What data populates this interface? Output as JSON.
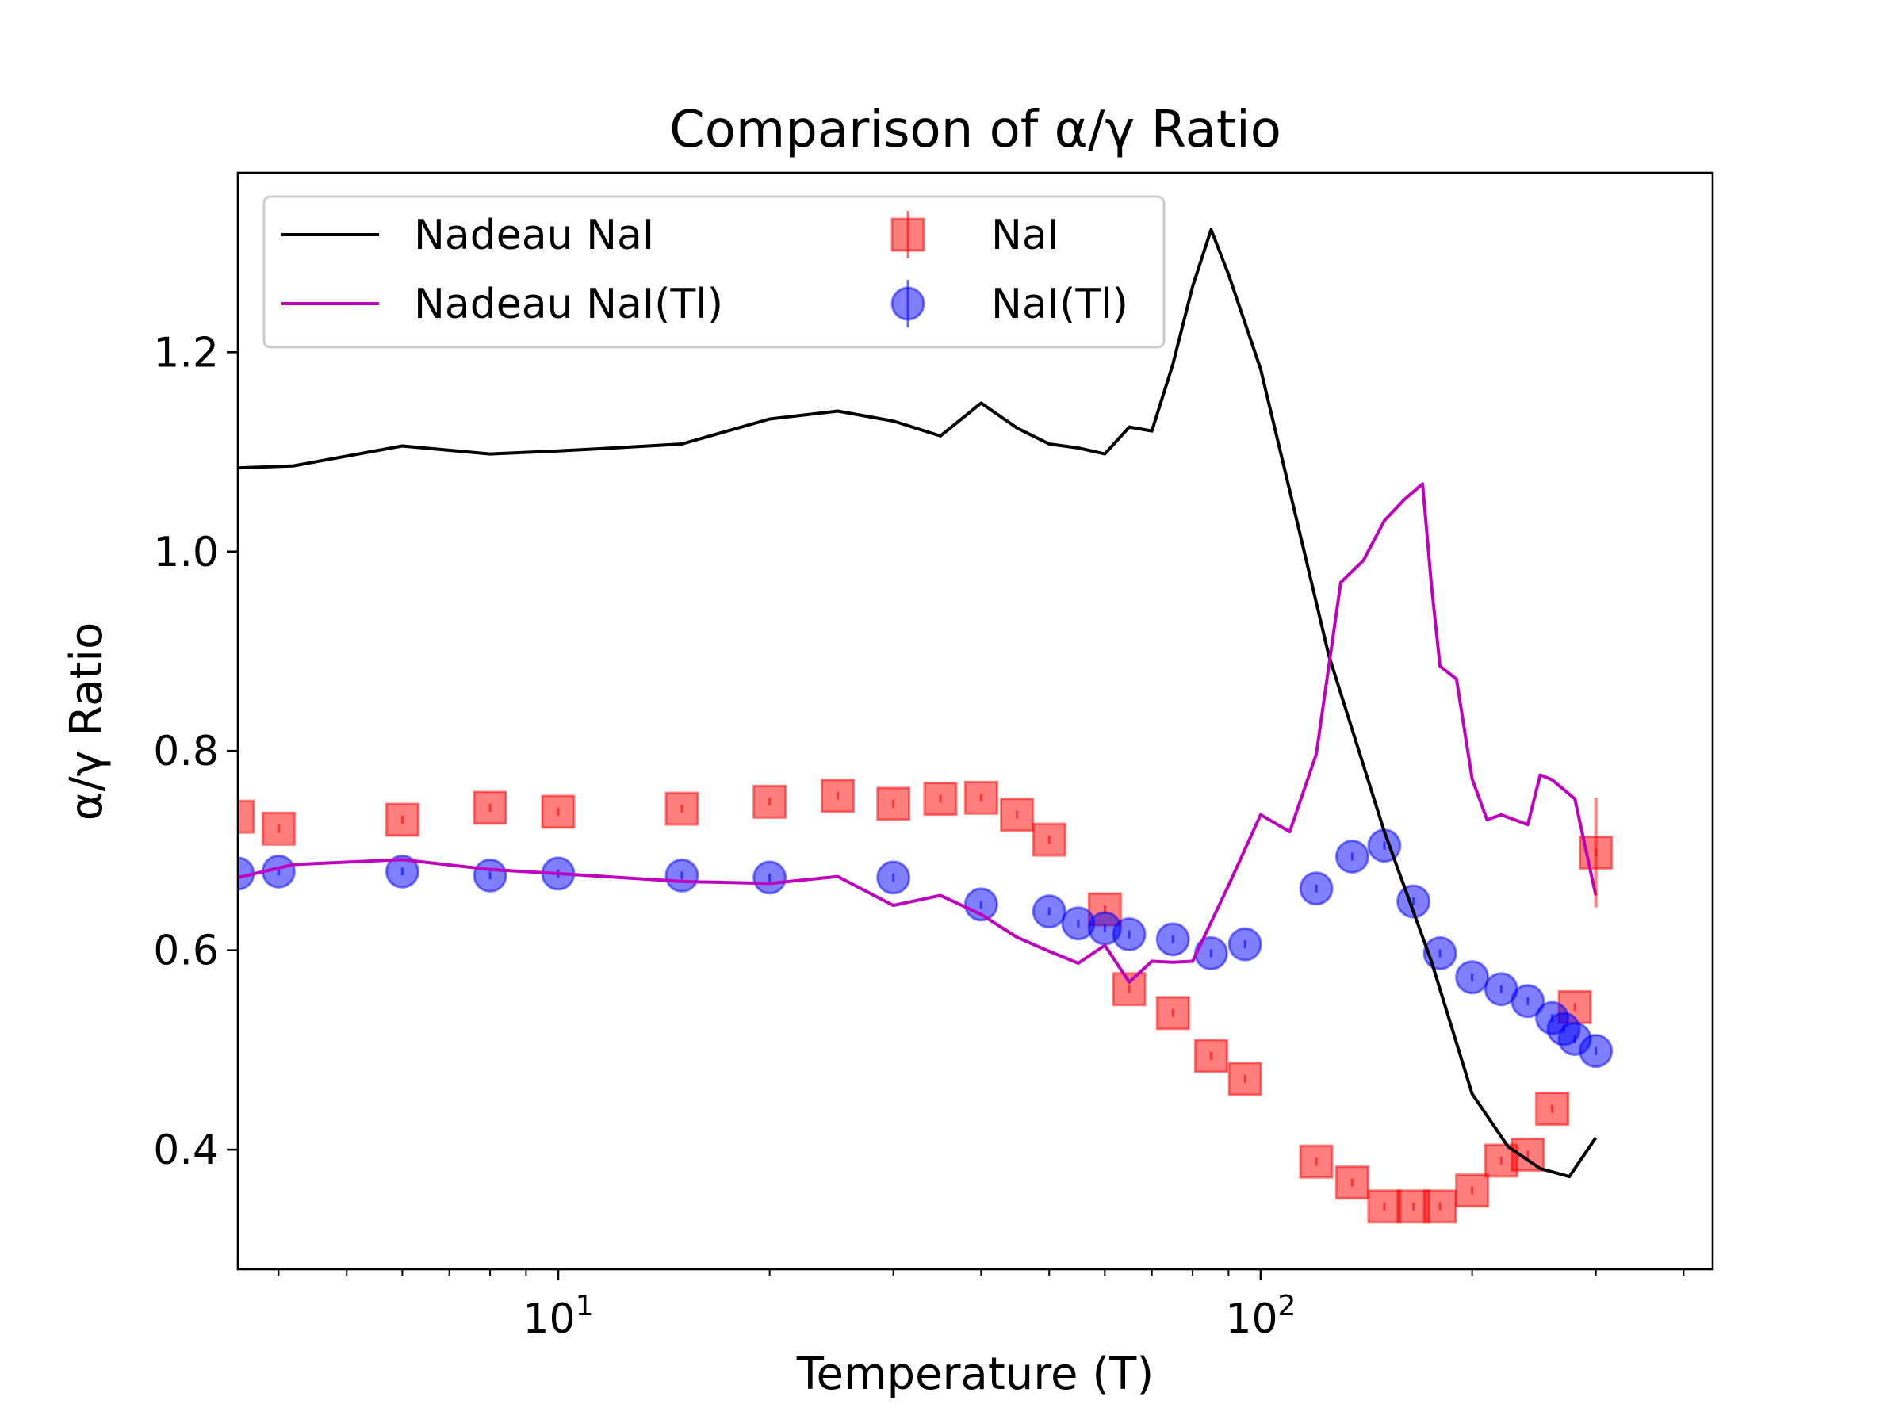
{
  "chart_data": {
    "type": "scatter",
    "title": "Comparison of α/γ Ratio",
    "xlabel": "Temperature (T)",
    "ylabel": "α/γ Ratio",
    "xscale": "log",
    "xlim": [
      3.5,
      440
    ],
    "ylim": [
      0.28,
      1.38
    ],
    "grid": false,
    "legend_position": "upper-left",
    "x_ticks": [
      {
        "value": 10,
        "base": "10",
        "exp": "1"
      },
      {
        "value": 100,
        "base": "10",
        "exp": "2"
      }
    ],
    "y_ticks": [
      {
        "value": 0.4,
        "label": "0.4"
      },
      {
        "value": 0.6,
        "label": "0.6"
      },
      {
        "value": 0.8,
        "label": "0.8"
      },
      {
        "value": 1.0,
        "label": "1.0"
      },
      {
        "value": 1.2,
        "label": "1.2"
      }
    ],
    "series": [
      {
        "name": "Nadeau NaI",
        "kind": "line",
        "color": "#000000",
        "x": [
          3.5,
          4.2,
          6,
          8,
          10,
          12,
          15,
          20,
          25,
          30,
          35,
          40,
          45,
          50,
          55,
          60,
          65,
          70,
          75,
          80,
          85,
          90,
          100,
          110,
          125,
          150,
          175,
          200,
          225,
          250,
          275,
          300
        ],
        "y": [
          1.084,
          1.086,
          1.106,
          1.098,
          1.101,
          1.104,
          1.108,
          1.133,
          1.141,
          1.131,
          1.116,
          1.149,
          1.124,
          1.108,
          1.104,
          1.098,
          1.125,
          1.121,
          1.188,
          1.266,
          1.323,
          1.278,
          1.183,
          1.061,
          0.896,
          0.719,
          0.589,
          0.456,
          0.403,
          0.381,
          0.373,
          0.412
        ]
      },
      {
        "name": "Nadeau NaI(Tl)",
        "kind": "line",
        "color": "#bf00bf",
        "x": [
          3.5,
          4.2,
          6,
          8,
          10,
          15,
          20,
          25,
          30,
          35,
          40,
          45,
          50,
          55,
          60,
          65,
          70,
          75,
          80,
          90,
          100,
          110,
          120,
          130,
          140,
          150,
          160,
          170,
          175,
          180,
          190,
          200,
          210,
          220,
          240,
          250,
          260,
          280,
          300
        ],
        "y": [
          0.673,
          0.686,
          0.691,
          0.681,
          0.677,
          0.669,
          0.667,
          0.674,
          0.645,
          0.655,
          0.636,
          0.613,
          0.599,
          0.587,
          0.605,
          0.568,
          0.589,
          0.588,
          0.589,
          0.665,
          0.736,
          0.719,
          0.797,
          0.969,
          0.991,
          1.031,
          1.052,
          1.068,
          0.967,
          0.885,
          0.872,
          0.772,
          0.731,
          0.736,
          0.726,
          0.776,
          0.771,
          0.752,
          0.655
        ]
      },
      {
        "name": "NaI",
        "kind": "markers",
        "marker": "square",
        "color": "#ff0000",
        "x": [
          3.5,
          4.0,
          6,
          8,
          10,
          15,
          20,
          25,
          30,
          35,
          40,
          45,
          50,
          60,
          65,
          75,
          85,
          95,
          120,
          135,
          150,
          165,
          180,
          200,
          220,
          240,
          260,
          280,
          300
        ],
        "y": [
          0.734,
          0.722,
          0.731,
          0.743,
          0.739,
          0.742,
          0.749,
          0.755,
          0.747,
          0.752,
          0.753,
          0.736,
          0.711,
          0.641,
          0.561,
          0.537,
          0.494,
          0.471,
          0.388,
          0.367,
          0.343,
          0.343,
          0.343,
          0.359,
          0.389,
          0.395,
          0.441,
          0.543,
          0.698
        ]
      },
      {
        "name": "NaI(Tl)",
        "kind": "markers",
        "marker": "circle",
        "color": "#0000ff",
        "x": [
          3.5,
          4.0,
          6,
          8,
          10,
          15,
          20,
          30,
          40,
          50,
          55,
          60,
          65,
          75,
          85,
          95,
          120,
          135,
          150,
          165,
          180,
          200,
          220,
          240,
          260,
          270,
          280,
          300
        ],
        "y": [
          0.677,
          0.679,
          0.679,
          0.675,
          0.677,
          0.675,
          0.673,
          0.673,
          0.646,
          0.639,
          0.627,
          0.622,
          0.616,
          0.611,
          0.597,
          0.606,
          0.662,
          0.694,
          0.705,
          0.649,
          0.597,
          0.573,
          0.561,
          0.549,
          0.532,
          0.521,
          0.511,
          0.499
        ]
      }
    ]
  }
}
